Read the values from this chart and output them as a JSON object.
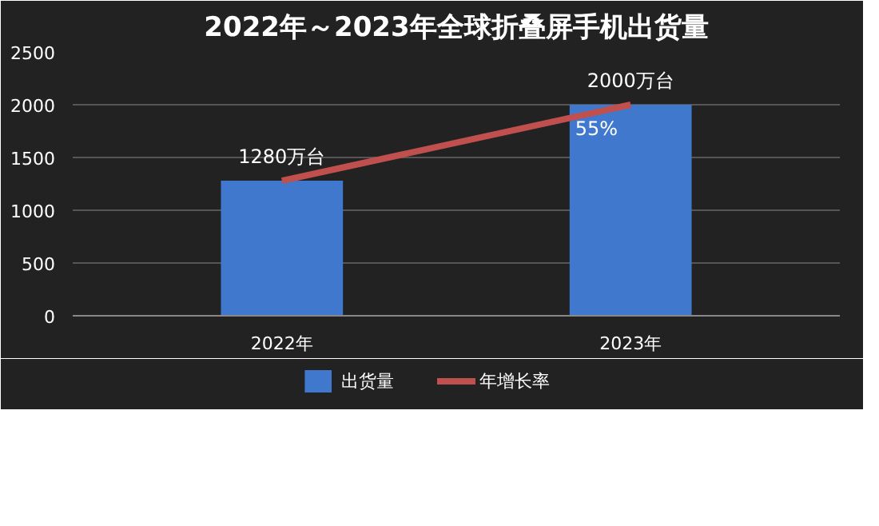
{
  "chart_data": {
    "type": "bar",
    "title": "2022年～2023年全球折叠屏手机出货量",
    "categories": [
      "2022年",
      "2023年"
    ],
    "series": [
      {
        "name": "出货量",
        "color": "#3f78cc",
        "values": [
          1280,
          2000
        ],
        "value_labels": [
          "1280万台",
          "2000万台"
        ]
      },
      {
        "name": "年增长率",
        "type": "line",
        "color": "#c0504d",
        "values": [
          1280,
          2000
        ]
      }
    ],
    "annotations": [
      {
        "text": "55%",
        "x": "2023年",
        "y": 2000
      }
    ],
    "ylim": [
      0,
      2500
    ],
    "yticks": [
      0,
      500,
      1000,
      1500,
      2000,
      2500
    ],
    "grid": "y",
    "legend": "bottom"
  }
}
